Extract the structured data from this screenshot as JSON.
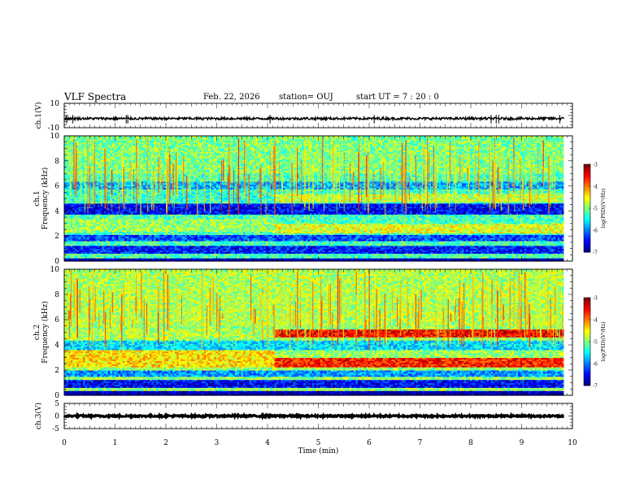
{
  "header": {
    "title": "VLF Spectra",
    "date": "Feb. 22, 2026",
    "station": "station= OUJ",
    "start_ut": "start  UT =   7 : 20 : 0"
  },
  "chart_data": [
    {
      "type": "line",
      "panel": "ch1-waveform",
      "ylabel": "ch.1(V)",
      "ylim": [
        -10,
        10
      ],
      "yticks": [
        "10",
        "-10"
      ],
      "baseline_value": -2.5,
      "noise_amplitude": 1.0,
      "spikes_at_min": [
        0.05,
        0.17,
        1.22,
        1.25,
        4.05,
        6.1,
        8.4,
        8.5,
        8.55,
        9.75
      ],
      "xlim": [
        0,
        10
      ]
    },
    {
      "type": "heatmap",
      "panel": "ch1-spectrogram",
      "ylabel_line1": "ch.1",
      "ylabel_line2": "Frequency  (kHz)",
      "ylim": [
        0,
        10
      ],
      "yticks": [
        "0",
        "2",
        "4",
        "6",
        "8",
        "10"
      ],
      "xlim": [
        0,
        10
      ],
      "data_end_min": 9.83,
      "colorbar": {
        "label": "log(PSD)(V²/Hz)",
        "range": [
          -7,
          -3
        ],
        "ticks": [
          "-3",
          "-4",
          "-5",
          "-6",
          "-7"
        ],
        "colormap": "jet"
      },
      "background_level": -5.2,
      "bands": [
        {
          "f_low": 0.0,
          "f_high": 0.3,
          "t_start": 0,
          "t_end": 9.83,
          "level": -6.8
        },
        {
          "f_low": 0.6,
          "f_high": 1.2,
          "t_start": 0,
          "t_end": 9.83,
          "level": -6.4
        },
        {
          "f_low": 1.6,
          "f_high": 2.1,
          "t_start": 0,
          "t_end": 9.83,
          "level": -6.2
        },
        {
          "f_low": 2.4,
          "f_high": 3.4,
          "t_start": 0,
          "t_end": 4.15,
          "level": -4.9
        },
        {
          "f_low": 2.3,
          "f_high": 3.0,
          "t_start": 4.15,
          "t_end": 9.83,
          "level": -4.6
        },
        {
          "f_low": 3.8,
          "f_high": 4.6,
          "t_start": 0,
          "t_end": 9.83,
          "level": -6.5
        },
        {
          "f_low": 4.7,
          "f_high": 5.6,
          "t_start": 0,
          "t_end": 4.15,
          "level": -5.3
        },
        {
          "f_low": 4.8,
          "f_high": 5.4,
          "t_start": 4.15,
          "t_end": 9.83,
          "level": -4.7
        },
        {
          "f_low": 5.8,
          "f_high": 6.4,
          "t_start": 0,
          "t_end": 9.83,
          "level": -5.8
        },
        {
          "f_low": 7.0,
          "f_high": 10.0,
          "t_start": 0,
          "t_end": 9.83,
          "level": -5.0
        }
      ],
      "sferic_density": 260
    },
    {
      "type": "heatmap",
      "panel": "ch2-spectrogram",
      "ylabel_line1": "ch.2",
      "ylabel_line2": "Frequency  (kHz)",
      "ylim": [
        0,
        10
      ],
      "yticks": [
        "0",
        "2",
        "4",
        "6",
        "8",
        "10"
      ],
      "xlim": [
        0,
        10
      ],
      "data_end_min": 9.83,
      "colorbar": {
        "label": "log(PSD)(V²/Hz)",
        "range": [
          -7,
          -3
        ],
        "ticks": [
          "-3",
          "-4",
          "-5",
          "-6",
          "-7"
        ],
        "colormap": "jet"
      },
      "background_level": -4.9,
      "bands": [
        {
          "f_low": 0.0,
          "f_high": 0.4,
          "t_start": 0,
          "t_end": 9.83,
          "level": -6.8
        },
        {
          "f_low": 0.6,
          "f_high": 1.3,
          "t_start": 0,
          "t_end": 9.83,
          "level": -6.5
        },
        {
          "f_low": 1.5,
          "f_high": 2.0,
          "t_start": 0,
          "t_end": 9.83,
          "level": -5.9
        },
        {
          "f_low": 2.3,
          "f_high": 3.6,
          "t_start": 0,
          "t_end": 4.15,
          "level": -4.4
        },
        {
          "f_low": 2.3,
          "f_high": 3.0,
          "t_start": 4.15,
          "t_end": 9.83,
          "level": -3.6
        },
        {
          "f_low": 3.6,
          "f_high": 4.4,
          "t_start": 0,
          "t_end": 9.83,
          "level": -5.6
        },
        {
          "f_low": 4.5,
          "f_high": 5.2,
          "t_start": 0,
          "t_end": 4.15,
          "level": -4.8
        },
        {
          "f_low": 4.6,
          "f_high": 5.3,
          "t_start": 4.15,
          "t_end": 9.83,
          "level": -3.5
        },
        {
          "f_low": 5.5,
          "f_high": 10.0,
          "t_start": 0,
          "t_end": 9.83,
          "level": -4.8
        }
      ],
      "sferic_density": 260
    },
    {
      "type": "line",
      "panel": "ch3-waveform",
      "ylabel": "ch.3(V)",
      "ylim": [
        -5,
        5
      ],
      "yticks": [
        "5",
        "0",
        "-5"
      ],
      "baseline_value": 0,
      "noise_amplitude": 0.35,
      "xlim": [
        0,
        10
      ],
      "xlabel": "Time  (min)",
      "xticks": [
        "0",
        "1",
        "2",
        "3",
        "4",
        "5",
        "6",
        "7",
        "8",
        "9",
        "10"
      ]
    }
  ]
}
